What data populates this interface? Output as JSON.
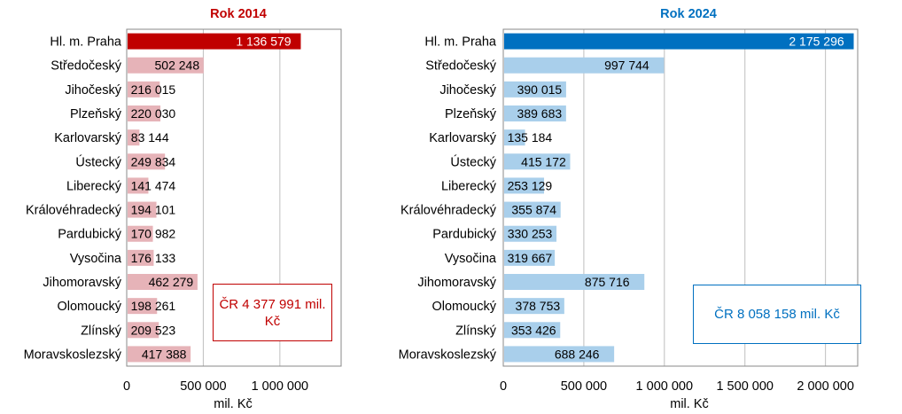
{
  "chart_data": [
    {
      "type": "bar",
      "orientation": "horizontal",
      "title": "Rok 2014",
      "title_color": "#C00000",
      "xlabel": "mil. Kč",
      "categories": [
        "Hl. m. Praha",
        "Středočeský",
        "Jihočeský",
        "Plzeňský",
        "Karlovarský",
        "Ústecký",
        "Liberecký",
        "Královéhradecký",
        "Pardubický",
        "Vysočina",
        "Jihomoravský",
        "Olomoucký",
        "Zlínský",
        "Moravskoslezský"
      ],
      "values": [
        1136579,
        502248,
        216015,
        220030,
        83144,
        249834,
        141474,
        194101,
        170982,
        176133,
        462279,
        198261,
        209523,
        417388
      ],
      "value_labels": [
        "1 136 579",
        "502 248",
        "216 015",
        "220 030",
        "83 144",
        "249 834",
        "141 474",
        "194 101",
        "170 982",
        "176 133",
        "462 279",
        "198 261",
        "209 523",
        "417 388"
      ],
      "xlim": [
        0,
        1400000
      ],
      "xticks": [
        0,
        500000,
        1000000
      ],
      "xtick_labels": [
        "0",
        "500 000",
        "1 000 000"
      ],
      "highlight_color": "#C00000",
      "bar_color": "#E6B3B8",
      "grid": true,
      "annotation": "ČR 4 377 991 mil. Kč"
    },
    {
      "type": "bar",
      "orientation": "horizontal",
      "title": "Rok 2024",
      "title_color": "#0070C0",
      "xlabel": "mil. Kč",
      "categories": [
        "Hl. m. Praha",
        "Středočeský",
        "Jihočeský",
        "Plzeňský",
        "Karlovarský",
        "Ústecký",
        "Liberecký",
        "Královéhradecký",
        "Pardubický",
        "Vysočina",
        "Jihomoravský",
        "Olomoucký",
        "Zlínský",
        "Moravskoslezský"
      ],
      "values": [
        2175296,
        997744,
        390015,
        389683,
        135184,
        415172,
        253129,
        355874,
        330253,
        319667,
        875716,
        378753,
        353426,
        688246
      ],
      "value_labels": [
        "2 175 296",
        "997 744",
        "390 015",
        "389 683",
        "135 184",
        "415 172",
        "253 129",
        "355 874",
        "330 253",
        "319 667",
        "875 716",
        "378 753",
        "353 426",
        "688 246"
      ],
      "xlim": [
        0,
        2200000
      ],
      "xticks": [
        0,
        500000,
        1000000,
        1500000,
        2000000
      ],
      "xtick_labels": [
        "0",
        "500 000",
        "1 000 000",
        "1 500 000",
        "2 000 000"
      ],
      "highlight_color": "#0070C0",
      "bar_color": "#A9CFEB",
      "grid": true,
      "annotation": "ČR 8 058 158 mil. Kč"
    }
  ]
}
